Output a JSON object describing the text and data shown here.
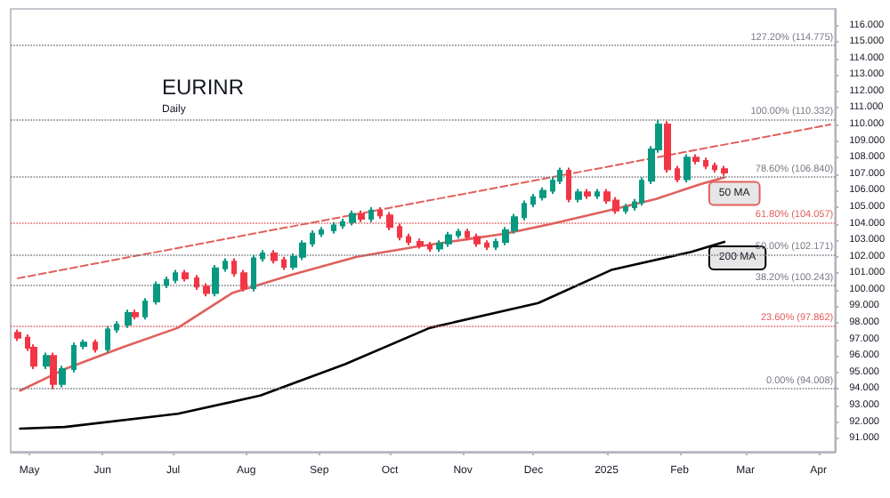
{
  "chart_data": {
    "type": "candlestick",
    "title": "EURINR",
    "subtitle": "Daily",
    "x": [
      "2024-04-26",
      "2024-04-30",
      "2024-05-03",
      "2024-05-08",
      "2024-05-11",
      "2024-05-15",
      "2024-05-20",
      "2024-05-24",
      "2024-05-29",
      "2024-06-03",
      "2024-06-07",
      "2024-06-12",
      "2024-06-15",
      "2024-06-19",
      "2024-06-24",
      "2024-06-28",
      "2024-07-02",
      "2024-07-06",
      "2024-07-11",
      "2024-07-15",
      "2024-07-19",
      "2024-07-23",
      "2024-07-27",
      "2024-07-31",
      "2024-08-04",
      "2024-08-08",
      "2024-08-13",
      "2024-08-17",
      "2024-08-21",
      "2024-08-25",
      "2024-08-29",
      "2024-09-02",
      "2024-09-07",
      "2024-09-11",
      "2024-09-15",
      "2024-09-19",
      "2024-09-23",
      "2024-09-27",
      "2024-10-01",
      "2024-10-05",
      "2024-10-09",
      "2024-10-14",
      "2024-10-18",
      "2024-10-22",
      "2024-10-26",
      "2024-10-30",
      "2024-11-03",
      "2024-11-07",
      "2024-11-11",
      "2024-11-15",
      "2024-11-19",
      "2024-11-23",
      "2024-11-27",
      "2024-12-01",
      "2024-12-05",
      "2024-12-09",
      "2024-12-12",
      "2024-12-16",
      "2024-12-20",
      "2024-12-24",
      "2024-12-28",
      "2025-01-01",
      "2025-01-05",
      "2025-01-09",
      "2025-01-13",
      "2025-01-16",
      "2025-01-20",
      "2025-01-23",
      "2025-01-27",
      "2025-01-31",
      "2025-02-04",
      "2025-02-08",
      "2025-02-12",
      "2025-02-16",
      "2025-02-20"
    ],
    "ohlc": [
      [
        97.4,
        97.6,
        96.9,
        97.1
      ],
      [
        97.1,
        97.3,
        96.3,
        96.5
      ],
      [
        96.5,
        96.7,
        95.2,
        95.4
      ],
      [
        95.4,
        96.2,
        95.2,
        96.0
      ],
      [
        96.0,
        96.2,
        94.0,
        94.3
      ],
      [
        94.3,
        95.4,
        94.1,
        95.2
      ],
      [
        95.2,
        96.8,
        95.0,
        96.6
      ],
      [
        96.6,
        97.0,
        96.4,
        96.8
      ],
      [
        96.8,
        97.0,
        96.2,
        96.4
      ],
      [
        96.4,
        97.8,
        96.2,
        97.6
      ],
      [
        97.6,
        98.1,
        97.4,
        97.9
      ],
      [
        97.9,
        98.8,
        97.7,
        98.6
      ],
      [
        98.6,
        98.8,
        98.2,
        98.4
      ],
      [
        98.4,
        99.5,
        98.2,
        99.3
      ],
      [
        99.3,
        100.5,
        99.1,
        100.3
      ],
      [
        100.3,
        100.8,
        100.1,
        100.6
      ],
      [
        100.6,
        101.2,
        100.4,
        101.0
      ],
      [
        101.0,
        101.2,
        100.5,
        100.7
      ],
      [
        100.7,
        100.9,
        100.0,
        100.2
      ],
      [
        100.2,
        100.4,
        99.6,
        99.8
      ],
      [
        99.8,
        101.5,
        99.6,
        101.3
      ],
      [
        101.3,
        101.9,
        101.1,
        101.7
      ],
      [
        101.7,
        101.9,
        100.8,
        101.0
      ],
      [
        101.0,
        101.2,
        99.9,
        100.1
      ],
      [
        100.1,
        102.1,
        99.9,
        101.9
      ],
      [
        101.9,
        102.4,
        101.7,
        102.2
      ],
      [
        102.2,
        102.4,
        101.6,
        101.8
      ],
      [
        101.8,
        102.0,
        101.2,
        101.4
      ],
      [
        101.4,
        102.2,
        101.2,
        102.0
      ],
      [
        102.0,
        103.0,
        101.8,
        102.8
      ],
      [
        102.8,
        103.6,
        102.6,
        103.4
      ],
      [
        103.4,
        103.8,
        103.2,
        103.6
      ],
      [
        103.6,
        104.1,
        103.4,
        103.9
      ],
      [
        103.9,
        104.3,
        103.7,
        104.1
      ],
      [
        104.1,
        104.8,
        103.9,
        104.6
      ],
      [
        104.6,
        104.8,
        104.1,
        104.3
      ],
      [
        104.3,
        105.0,
        104.1,
        104.8
      ],
      [
        104.8,
        105.0,
        104.3,
        104.5
      ],
      [
        104.5,
        104.7,
        103.6,
        103.8
      ],
      [
        103.8,
        104.0,
        103.0,
        103.2
      ],
      [
        103.2,
        103.4,
        102.7,
        102.9
      ],
      [
        102.9,
        103.1,
        102.5,
        102.7
      ],
      [
        102.7,
        102.9,
        102.3,
        102.5
      ],
      [
        102.5,
        103.0,
        102.3,
        102.8
      ],
      [
        102.8,
        103.5,
        102.6,
        103.3
      ],
      [
        103.3,
        103.7,
        103.1,
        103.5
      ],
      [
        103.5,
        103.7,
        103.0,
        103.2
      ],
      [
        103.2,
        103.4,
        102.6,
        102.8
      ],
      [
        102.8,
        103.0,
        102.4,
        102.6
      ],
      [
        102.6,
        103.1,
        102.4,
        102.9
      ],
      [
        102.9,
        103.8,
        102.7,
        103.6
      ],
      [
        103.6,
        104.6,
        103.4,
        104.4
      ],
      [
        104.4,
        105.4,
        104.2,
        105.2
      ],
      [
        105.2,
        105.8,
        105.0,
        105.6
      ],
      [
        105.6,
        106.2,
        105.4,
        106.0
      ],
      [
        106.0,
        106.8,
        105.8,
        106.6
      ],
      [
        106.6,
        107.4,
        106.4,
        107.2
      ],
      [
        107.2,
        107.4,
        105.3,
        105.5
      ],
      [
        105.5,
        106.1,
        105.3,
        105.9
      ],
      [
        105.9,
        106.1,
        105.5,
        105.7
      ],
      [
        105.7,
        106.1,
        105.5,
        105.9
      ],
      [
        105.9,
        106.1,
        105.2,
        105.4
      ],
      [
        105.4,
        105.6,
        104.6,
        104.8
      ],
      [
        104.8,
        105.2,
        104.6,
        105.0
      ],
      [
        105.0,
        105.5,
        104.8,
        105.3
      ],
      [
        105.3,
        106.8,
        105.1,
        106.6
      ],
      [
        106.6,
        108.7,
        106.4,
        108.5
      ],
      [
        108.5,
        110.3,
        108.3,
        110.0
      ],
      [
        110.0,
        110.2,
        107.1,
        107.3
      ],
      [
        107.3,
        107.5,
        106.5,
        106.7
      ],
      [
        106.7,
        108.2,
        106.5,
        108.0
      ],
      [
        108.0,
        108.2,
        107.6,
        107.8
      ],
      [
        107.8,
        108.0,
        107.3,
        107.5
      ],
      [
        107.5,
        107.7,
        107.1,
        107.3
      ],
      [
        107.3,
        107.5,
        106.9,
        107.1
      ]
    ],
    "series": [
      {
        "type": "line",
        "name": "50 MA",
        "color": "#e0605c",
        "x": [
          "2024-04-27",
          "2024-05-16",
          "2024-06-09",
          "2024-07-03",
          "2024-07-26",
          "2024-08-20",
          "2024-09-17",
          "2024-10-12",
          "2024-10-31",
          "2024-11-19",
          "2024-12-09",
          "2024-12-30",
          "2025-01-22",
          "2025-02-10",
          "2025-02-20"
        ],
        "values": [
          93.9,
          95.2,
          96.5,
          97.7,
          99.8,
          100.9,
          102.0,
          102.6,
          103.0,
          103.4,
          104.0,
          104.7,
          105.5,
          106.4,
          106.8
        ]
      },
      {
        "type": "line",
        "name": "200 MA",
        "color": "#000000",
        "x": [
          "2024-04-27",
          "2024-05-16",
          "2024-07-03",
          "2024-08-07",
          "2024-09-12",
          "2024-10-18",
          "2024-12-03",
          "2025-01-03",
          "2025-02-06",
          "2025-02-20"
        ],
        "values": [
          91.6,
          91.7,
          92.5,
          93.6,
          95.5,
          97.7,
          99.2,
          101.2,
          102.3,
          102.9
        ]
      },
      {
        "type": "line",
        "color": "#e0605c",
        "line_style": "dashed",
        "x": [
          "2024-04-26",
          "2025-04-06"
        ],
        "values": [
          100.7,
          110.0
        ]
      }
    ],
    "marker": "none",
    "xlim": [
      "2024-04-23",
      "2025-04-08"
    ],
    "xticks": [
      {
        "value": "2024-05-01",
        "label": "May"
      },
      {
        "value": "2024-06-01",
        "label": "Jun"
      },
      {
        "value": "2024-07-01",
        "label": "Jul"
      },
      {
        "value": "2024-08-01",
        "label": "Aug"
      },
      {
        "value": "2024-09-01",
        "label": "Sep"
      },
      {
        "value": "2024-10-01",
        "label": "Oct"
      },
      {
        "value": "2024-11-01",
        "label": "Nov"
      },
      {
        "value": "2024-12-01",
        "label": "Dec"
      },
      {
        "value": "2025-01-01",
        "label": "2025"
      },
      {
        "value": "2025-02-01",
        "label": "Feb"
      },
      {
        "value": "2025-03-01",
        "label": "Mar"
      },
      {
        "value": "2025-04-01",
        "label": "Apr"
      }
    ],
    "ylim": [
      90.2,
      117
    ],
    "yticks": [
      {
        "value": 91,
        "label": "91.000"
      },
      {
        "value": 92,
        "label": "92.000"
      },
      {
        "value": 93,
        "label": "93.000"
      },
      {
        "value": 94,
        "label": "94.000"
      },
      {
        "value": 95,
        "label": "95.000"
      },
      {
        "value": 96,
        "label": "96.000"
      },
      {
        "value": 97,
        "label": "97.000"
      },
      {
        "value": 98,
        "label": "98.000"
      },
      {
        "value": 99,
        "label": "99.000"
      },
      {
        "value": 100,
        "label": "100.000"
      },
      {
        "value": 101,
        "label": "101.000"
      },
      {
        "value": 102,
        "label": "102.000"
      },
      {
        "value": 103,
        "label": "103.000"
      },
      {
        "value": 104,
        "label": "104.000"
      },
      {
        "value": 105,
        "label": "105.000"
      },
      {
        "value": 106,
        "label": "106.000"
      },
      {
        "value": 107,
        "label": "107.000"
      },
      {
        "value": 108,
        "label": "108.000"
      },
      {
        "value": 109,
        "label": "109.000"
      },
      {
        "value": 110,
        "label": "110.000"
      },
      {
        "value": 111,
        "label": "111.000"
      },
      {
        "value": 112,
        "label": "112.000"
      },
      {
        "value": 113,
        "label": "113.000"
      },
      {
        "value": 114,
        "label": "114.000"
      },
      {
        "value": 115,
        "label": "115.000"
      },
      {
        "value": 116,
        "label": "116.000"
      }
    ],
    "ref_lines": [
      {
        "axis": "y",
        "value": 114.775,
        "label": "127.20% (114.775)",
        "color": "#787b86",
        "line_style": "dotted"
      },
      {
        "axis": "y",
        "value": 110.332,
        "label": "100.00% (110.332)",
        "color": "#787b86",
        "line_style": "dotted"
      },
      {
        "axis": "y",
        "value": 106.84,
        "label": "78.60% (106.840)",
        "color": "#787b86",
        "line_style": "dotted"
      },
      {
        "axis": "y",
        "value": 104.057,
        "label": "61.80% (104.057)",
        "color": "#e0605c",
        "line_style": "dotted"
      },
      {
        "axis": "y",
        "value": 102.171,
        "label": "50.00% (102.171)",
        "color": "#787b86",
        "line_style": "dotted"
      },
      {
        "axis": "y",
        "value": 100.243,
        "label": "38.20% (100.243)",
        "color": "#787b86",
        "line_style": "dotted"
      },
      {
        "axis": "y",
        "value": 97.862,
        "label": "23.60% (97.862)",
        "color": "#e0605c",
        "line_style": "dotted"
      },
      {
        "axis": "y",
        "value": 94.008,
        "label": "0.00% (94.008)",
        "color": "#787b86",
        "line_style": "dotted"
      }
    ],
    "legend": false
  }
}
